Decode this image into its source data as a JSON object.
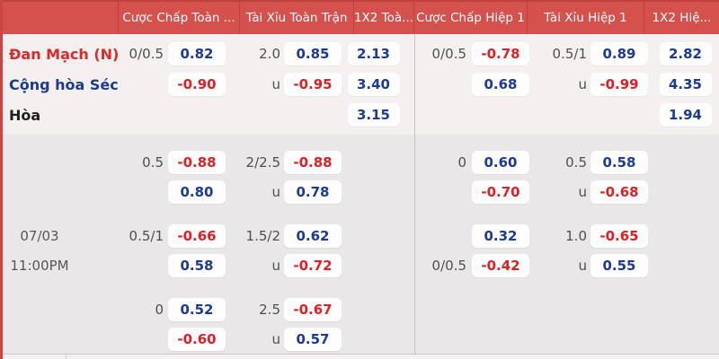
{
  "colors": {
    "header_bg": "#d5514d",
    "header_border": "#c1413d",
    "accent_red": "#e01f25",
    "accent_blue": "#1c3a96",
    "team_home_red": "#d9292b",
    "team_away_blue": "#1c3a96",
    "light_group_bg": "#f5f0f0",
    "body_bg": "#e9e7e7",
    "odds_box_bg": "#fdfdfd"
  },
  "header": {
    "columns": [
      "",
      "Cược Chấp Toàn ...",
      "Tài Xỉu Toàn Trận",
      "1X2 Toà...",
      "Cược Chấp Hiệp 1",
      "Tài Xỉu Hiệp 1",
      "1X2 Hiệ..."
    ]
  },
  "match": {
    "home": "Đan Mạch (N)",
    "away": "Cộng hòa Séc",
    "draw_label": "Hòa",
    "date": "07/03",
    "time": "11:00PM"
  },
  "groups": [
    {
      "light": true,
      "rows": [
        {
          "left": "Đan Mạch (N)",
          "left_style": "home",
          "ah_label": "0/0.5",
          "ah": "0.82",
          "ou_label": "2.0",
          "ou": "0.85",
          "x12_ft": "2.13",
          "ah1_label": "0/0.5",
          "ah1": "-0.78",
          "ou1_label": "0.5/1",
          "ou1": "0.89",
          "x12_h1": "2.82"
        },
        {
          "left": "Cộng hòa Séc",
          "left_style": "away",
          "ah_label": "",
          "ah": "-0.90",
          "ou_label": "u",
          "ou": "-0.95",
          "x12_ft": "3.40",
          "ah1_label": "",
          "ah1": "0.68",
          "ou1_label": "u",
          "ou1": "-0.99",
          "x12_h1": "4.35"
        },
        {
          "left": "Hòa",
          "left_style": "draw",
          "ah_label": "",
          "ah": "",
          "ou_label": "",
          "ou": "",
          "x12_ft": "3.15",
          "ah1_label": "",
          "ah1": "",
          "ou1_label": "",
          "ou1": "",
          "x12_h1": "1.94"
        }
      ]
    },
    {
      "light": false,
      "rows": [
        {
          "left": "",
          "left_style": "",
          "ah_label": "0.5",
          "ah": "-0.88",
          "ou_label": "2/2.5",
          "ou": "-0.88",
          "x12_ft": "",
          "ah1_label": "0",
          "ah1": "0.60",
          "ou1_label": "0.5",
          "ou1": "0.58",
          "x12_h1": ""
        },
        {
          "left": "",
          "left_style": "",
          "ah_label": "",
          "ah": "0.80",
          "ou_label": "u",
          "ou": "0.78",
          "x12_ft": "",
          "ah1_label": "",
          "ah1": "-0.70",
          "ou1_label": "u",
          "ou1": "-0.68",
          "x12_h1": ""
        }
      ]
    },
    {
      "light": false,
      "rows": [
        {
          "left": "07/03",
          "left_style": "date",
          "ah_label": "0.5/1",
          "ah": "-0.66",
          "ou_label": "1.5/2",
          "ou": "0.62",
          "x12_ft": "",
          "ah1_label": "",
          "ah1": "0.32",
          "ou1_label": "1.0",
          "ou1": "-0.65",
          "x12_h1": ""
        },
        {
          "left": "11:00PM",
          "left_style": "time",
          "ah_label": "",
          "ah": "0.58",
          "ou_label": "u",
          "ou": "-0.72",
          "x12_ft": "",
          "ah1_label": "0/0.5",
          "ah1": "-0.42",
          "ou1_label": "u",
          "ou1": "0.55",
          "x12_h1": ""
        }
      ]
    },
    {
      "light": false,
      "rows": [
        {
          "left": "",
          "left_style": "",
          "ah_label": "0",
          "ah": "0.52",
          "ou_label": "2.5",
          "ou": "-0.67",
          "x12_ft": "",
          "ah1_label": "",
          "ah1": "",
          "ou1_label": "",
          "ou1": "",
          "x12_h1": ""
        },
        {
          "left": "",
          "left_style": "",
          "ah_label": "",
          "ah": "-0.60",
          "ou_label": "u",
          "ou": "0.57",
          "x12_ft": "",
          "ah1_label": "",
          "ah1": "",
          "ou1_label": "",
          "ou1": "",
          "x12_h1": ""
        }
      ]
    }
  ]
}
